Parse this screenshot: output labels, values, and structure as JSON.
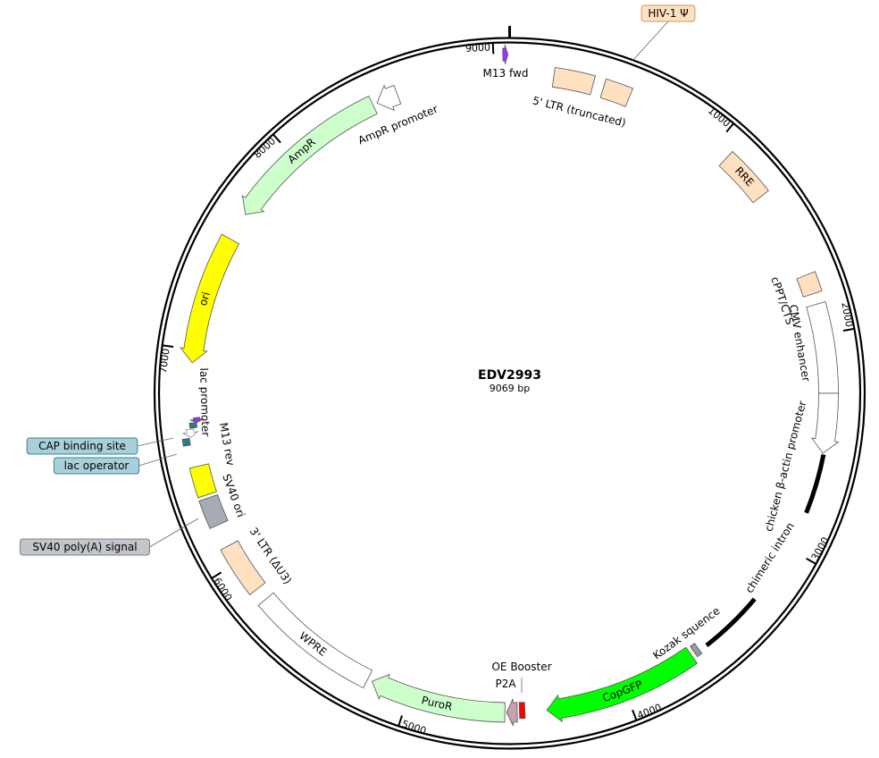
{
  "plasmid": {
    "name": "EDV2993",
    "length_label": "9069 bp",
    "length_bp": 9069
  },
  "ticks": [
    {
      "bp": 1000,
      "label": "1000"
    },
    {
      "bp": 2000,
      "label": "2000"
    },
    {
      "bp": 3000,
      "label": "3000"
    },
    {
      "bp": 4000,
      "label": "4000"
    },
    {
      "bp": 5000,
      "label": "5000"
    },
    {
      "bp": 6000,
      "label": "6000"
    },
    {
      "bp": 7000,
      "label": "7000"
    },
    {
      "bp": 8000,
      "label": "8000"
    },
    {
      "bp": 9000,
      "label": "9000"
    }
  ],
  "features": [
    {
      "id": "m13-fwd",
      "label": "M13 fwd",
      "start": 9040,
      "end": 9062,
      "dir": 1,
      "color": "#9933ff",
      "shape": "arrow"
    },
    {
      "id": "5-ltr",
      "label": "5' LTR (truncated)",
      "start": 200,
      "end": 381,
      "dir": 0,
      "color": "#ffe0c0",
      "shape": "box"
    },
    {
      "id": "hiv-psi",
      "label": "HIV-1 Ψ",
      "start": 430,
      "end": 555,
      "dir": 0,
      "color": "#ffe0c0",
      "shape": "box"
    },
    {
      "id": "rre",
      "label": "RRE",
      "start": 1075,
      "end": 1309,
      "dir": 0,
      "color": "#ffe0c0",
      "shape": "box"
    },
    {
      "id": "cppt",
      "label": "cPPT/CTS",
      "start": 1720,
      "end": 1810,
      "dir": 0,
      "color": "#ffe0c0",
      "shape": "box"
    },
    {
      "id": "cmv-enhancer",
      "label": "CMV enhancer",
      "start": 1860,
      "end": 2267,
      "dir": 0,
      "color": "#ffffff",
      "shape": "box"
    },
    {
      "id": "cba-promoter",
      "label": "chicken β-actin promoter",
      "start": 2267,
      "end": 2540,
      "dir": 1,
      "color": "#ffffff",
      "shape": "arrow"
    },
    {
      "id": "chimeric-intron-a",
      "label": "",
      "start": 2545,
      "end": 2820,
      "dir": 0,
      "color": "#000000",
      "shape": "line"
    },
    {
      "id": "chimeric-intron",
      "label": "chimeric intron",
      "start": 3275,
      "end": 3577,
      "dir": 0,
      "color": "#000000",
      "shape": "line"
    },
    {
      "id": "kozak",
      "label": "Kozak squence",
      "start": 3615,
      "end": 3640,
      "dir": 0,
      "color": "#999999",
      "shape": "box"
    },
    {
      "id": "copgfp",
      "label": "CopGFP",
      "start": 3658,
      "end": 4366,
      "dir": 1,
      "color": "#00ff00",
      "shape": "arrow"
    },
    {
      "id": "oe-booster",
      "label": "OE Booster",
      "start": 4465,
      "end": 4490,
      "dir": 0,
      "color": "#ff0000",
      "shape": "box"
    },
    {
      "id": "p2a",
      "label": "P2A",
      "start": 4500,
      "end": 4548,
      "dir": 1,
      "color": "#c8a0b4",
      "shape": "arrow"
    },
    {
      "id": "puror",
      "label": "PuroR",
      "start": 4556,
      "end": 5178,
      "dir": 1,
      "color": "#ccffcc",
      "shape": "arrow"
    },
    {
      "id": "wpre",
      "label": "WPRE",
      "start": 5200,
      "end": 5790,
      "dir": 0,
      "color": "#ffffff",
      "shape": "box"
    },
    {
      "id": "3-ltr",
      "label": "3' LTR (ΔU3)",
      "start": 5850,
      "end": 6085,
      "dir": 0,
      "color": "#ffe0c0",
      "shape": "box"
    },
    {
      "id": "sv40-polya",
      "label": "SV40 poly(A) signal",
      "start": 6190,
      "end": 6320,
      "dir": 0,
      "color": "#a6acb3",
      "shape": "box"
    },
    {
      "id": "sv40-ori",
      "label": "SV40 ori",
      "start": 6335,
      "end": 6470,
      "dir": 0,
      "color": "#ffff00",
      "shape": "box"
    },
    {
      "id": "cap-site",
      "label": "CAP binding site",
      "start": 6570,
      "end": 6600,
      "dir": 0,
      "color": "#2f7a8c",
      "shape": "box"
    },
    {
      "id": "lac-promoter",
      "label": "lac promoter",
      "start": 6603,
      "end": 6640,
      "dir": -1,
      "color": "#ffffff",
      "shape": "arrow"
    },
    {
      "id": "lac-operator",
      "label": "lac operator",
      "start": 6645,
      "end": 6668,
      "dir": 0,
      "color": "#2f7a8c",
      "shape": "box"
    },
    {
      "id": "m13-rev",
      "label": "M13 rev",
      "start": 6668,
      "end": 6690,
      "dir": -1,
      "color": "#9933ff",
      "shape": "arrow"
    },
    {
      "id": "ori",
      "label": "ori",
      "start": 6940,
      "end": 7530,
      "dir": -1,
      "color": "#ffff00",
      "shape": "arrow"
    },
    {
      "id": "ampr",
      "label": "AmpR",
      "start": 7660,
      "end": 8430,
      "dir": -1,
      "color": "#ccffcc",
      "shape": "arrow"
    },
    {
      "id": "ampr-promoter",
      "label": "AmpR promoter",
      "start": 8450,
      "end": 8550,
      "dir": -1,
      "color": "#ffffff",
      "shape": "arrow"
    }
  ],
  "callouts": [
    {
      "feature": "hiv-psi",
      "label": "HIV-1 Ψ",
      "color": "#ffe0c0",
      "border": "#c8956a"
    },
    {
      "feature": "cap-site",
      "label": "CAP binding site",
      "color": "#a9d0da",
      "border": "#3a7d8e"
    },
    {
      "feature": "lac-operator",
      "label": "lac operator",
      "color": "#a9d0da",
      "border": "#3a7d8e"
    },
    {
      "feature": "sv40-polya",
      "label": "SV40 poly(A) signal",
      "color": "#c2c5c9",
      "border": "#7d8288"
    }
  ]
}
